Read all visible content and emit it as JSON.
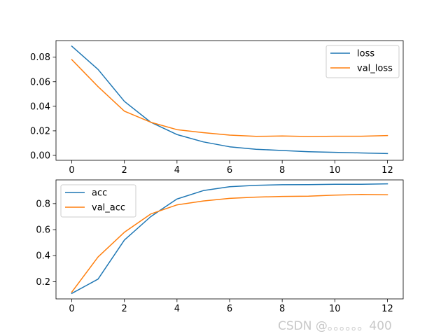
{
  "chart_data": [
    {
      "type": "line",
      "title": "",
      "xlabel": "",
      "ylabel": "",
      "x": [
        0,
        1,
        2,
        3,
        4,
        5,
        6,
        7,
        8,
        9,
        10,
        11,
        12
      ],
      "xlim": [
        -0.6,
        12.6
      ],
      "ylim": [
        -0.004,
        0.0935
      ],
      "xticks": [
        0,
        2,
        4,
        6,
        8,
        10,
        12
      ],
      "xtick_labels": [
        "0",
        "2",
        "4",
        "6",
        "8",
        "10",
        "12"
      ],
      "yticks": [
        0.0,
        0.02,
        0.04,
        0.06,
        0.08
      ],
      "ytick_labels": [
        "0.00",
        "0.02",
        "0.04",
        "0.06",
        "0.08"
      ],
      "legend_position": "upper right",
      "grid": false,
      "series": [
        {
          "name": "loss",
          "color": "#1f77b4",
          "values": [
            0.089,
            0.07,
            0.044,
            0.027,
            0.017,
            0.011,
            0.007,
            0.005,
            0.004,
            0.003,
            0.0025,
            0.002,
            0.0015
          ]
        },
        {
          "name": "val_loss",
          "color": "#ff7f0e",
          "values": [
            0.078,
            0.056,
            0.036,
            0.027,
            0.021,
            0.0185,
            0.0165,
            0.0155,
            0.0158,
            0.0154,
            0.0156,
            0.0156,
            0.0162
          ]
        }
      ]
    },
    {
      "type": "line",
      "title": "",
      "xlabel": "",
      "ylabel": "",
      "x": [
        0,
        1,
        2,
        3,
        4,
        5,
        6,
        7,
        8,
        9,
        10,
        11,
        12
      ],
      "xlim": [
        -0.6,
        12.6
      ],
      "ylim": [
        0.068,
        0.982
      ],
      "xticks": [
        0,
        2,
        4,
        6,
        8,
        10,
        12
      ],
      "xtick_labels": [
        "0",
        "2",
        "4",
        "6",
        "8",
        "10",
        "12"
      ],
      "yticks": [
        0.2,
        0.4,
        0.6,
        0.8
      ],
      "ytick_labels": [
        "0.2",
        "0.4",
        "0.6",
        "0.8"
      ],
      "legend_position": "upper left",
      "grid": false,
      "series": [
        {
          "name": "acc",
          "color": "#1f77b4",
          "values": [
            0.11,
            0.22,
            0.52,
            0.7,
            0.835,
            0.9,
            0.93,
            0.94,
            0.945,
            0.946,
            0.948,
            0.948,
            0.952
          ]
        },
        {
          "name": "val_acc",
          "color": "#ff7f0e",
          "values": [
            0.12,
            0.39,
            0.58,
            0.72,
            0.79,
            0.82,
            0.84,
            0.85,
            0.855,
            0.857,
            0.865,
            0.87,
            0.868
          ]
        }
      ]
    }
  ],
  "watermark": "CSDN @。。。。。。400"
}
